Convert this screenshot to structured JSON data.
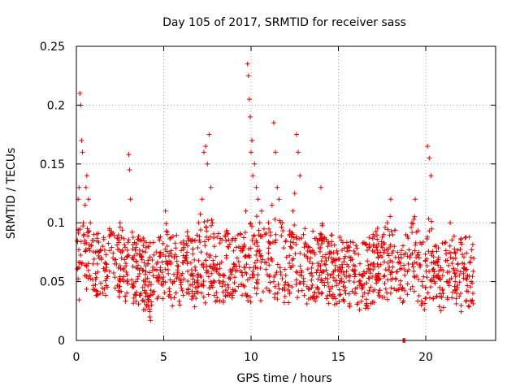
{
  "chart_data": {
    "type": "scatter",
    "title": "Day 105 of 2017, SRMTID for receiver sass",
    "xlabel": "GPS time / hours",
    "ylabel": "SRMTID / TECUs",
    "xlim": [
      0,
      24
    ],
    "ylim": [
      0,
      0.25
    ],
    "xticks": [
      0,
      5,
      10,
      15,
      20
    ],
    "xtick_labels": [
      "0",
      "5",
      "10",
      "15",
      "20"
    ],
    "yticks": [
      0,
      0.05,
      0.1,
      0.15,
      0.2,
      0.25
    ],
    "ytick_labels": [
      "0",
      "0.05",
      "0.1",
      "0.15",
      "0.2",
      "0.25"
    ],
    "grid": true,
    "marker": "+",
    "color": "#e00000",
    "series": [
      {
        "name": "SRMTID",
        "x": [
          0.05,
          0.1,
          0.15,
          0.2,
          0.25,
          0.3,
          0.35,
          0.4,
          0.45,
          0.5,
          0.55,
          0.6,
          0.7,
          0.8,
          0.9,
          1.0,
          1.1,
          1.2,
          1.3,
          1.5,
          1.7,
          1.9,
          2.1,
          2.3,
          2.5,
          2.7,
          2.9,
          3.0,
          3.05,
          3.1,
          3.2,
          3.4,
          3.6,
          3.8,
          4.0,
          4.1,
          4.2,
          4.25,
          4.3,
          4.4,
          4.6,
          4.8,
          5.0,
          5.1,
          5.2,
          5.4,
          5.6,
          5.8,
          6.0,
          6.2,
          6.4,
          6.6,
          6.8,
          7.0,
          7.2,
          7.3,
          7.4,
          7.5,
          7.6,
          7.7,
          7.8,
          7.9,
          8.0,
          8.2,
          8.4,
          8.6,
          8.8,
          9.0,
          9.2,
          9.4,
          9.6,
          9.7,
          9.8,
          9.85,
          9.9,
          9.95,
          10.0,
          10.05,
          10.1,
          10.2,
          10.3,
          10.4,
          10.5,
          10.6,
          10.8,
          11.0,
          11.2,
          11.3,
          11.4,
          11.5,
          11.6,
          11.8,
          12.0,
          12.2,
          12.4,
          12.5,
          12.6,
          12.7,
          12.8,
          13.0,
          13.2,
          13.4,
          13.6,
          13.8,
          14.0,
          14.2,
          14.4,
          14.6,
          14.8,
          15.0,
          15.2,
          15.4,
          15.6,
          15.8,
          16.0,
          16.2,
          16.4,
          16.6,
          16.8,
          17.0,
          17.2,
          17.4,
          17.6,
          17.8,
          18.0,
          18.2,
          18.4,
          18.6,
          18.8,
          19.0,
          19.2,
          19.4,
          19.6,
          19.8,
          20.0,
          20.1,
          20.2,
          20.3,
          20.4,
          20.5,
          20.6,
          20.8,
          21.0,
          21.2,
          21.4,
          21.6,
          21.8,
          22.0,
          22.2,
          22.4,
          22.6,
          22.7
        ],
        "y": [
          0.085,
          0.12,
          0.13,
          0.21,
          0.2,
          0.17,
          0.16,
          0.1,
          0.09,
          0.115,
          0.13,
          0.14,
          0.12,
          0.1,
          0.085,
          0.09,
          0.075,
          0.065,
          0.07,
          0.08,
          0.06,
          0.095,
          0.07,
          0.065,
          0.1,
          0.06,
          0.05,
          0.158,
          0.145,
          0.12,
          0.07,
          0.05,
          0.06,
          0.045,
          0.04,
          0.035,
          0.02,
          0.017,
          0.03,
          0.055,
          0.065,
          0.06,
          0.05,
          0.11,
          0.09,
          0.065,
          0.05,
          0.06,
          0.055,
          0.07,
          0.085,
          0.06,
          0.045,
          0.1,
          0.12,
          0.16,
          0.165,
          0.15,
          0.175,
          0.13,
          0.1,
          0.08,
          0.06,
          0.065,
          0.055,
          0.07,
          0.06,
          0.065,
          0.07,
          0.09,
          0.08,
          0.11,
          0.235,
          0.225,
          0.205,
          0.19,
          0.16,
          0.17,
          0.14,
          0.15,
          0.13,
          0.12,
          0.1,
          0.11,
          0.09,
          0.1,
          0.115,
          0.185,
          0.16,
          0.13,
          0.12,
          0.1,
          0.085,
          0.09,
          0.11,
          0.125,
          0.175,
          0.16,
          0.14,
          0.09,
          0.08,
          0.07,
          0.075,
          0.06,
          0.13,
          0.065,
          0.08,
          0.07,
          0.06,
          0.055,
          0.05,
          0.045,
          0.055,
          0.06,
          0.04,
          0.05,
          0.045,
          0.035,
          0.06,
          0.065,
          0.08,
          0.075,
          0.09,
          0.1,
          0.12,
          0.08,
          0.075,
          0.07,
          0.06,
          0.065,
          0.1,
          0.12,
          0.075,
          0.05,
          0.045,
          0.165,
          0.155,
          0.14,
          0.06,
          0.05,
          0.055,
          0.045,
          0.04,
          0.05,
          0.1,
          0.06,
          0.045,
          0.04,
          0.065,
          0.055,
          0.05,
          0.04
        ]
      }
    ],
    "zero_points_x": [
      18.7,
      18.75,
      18.8
    ]
  }
}
